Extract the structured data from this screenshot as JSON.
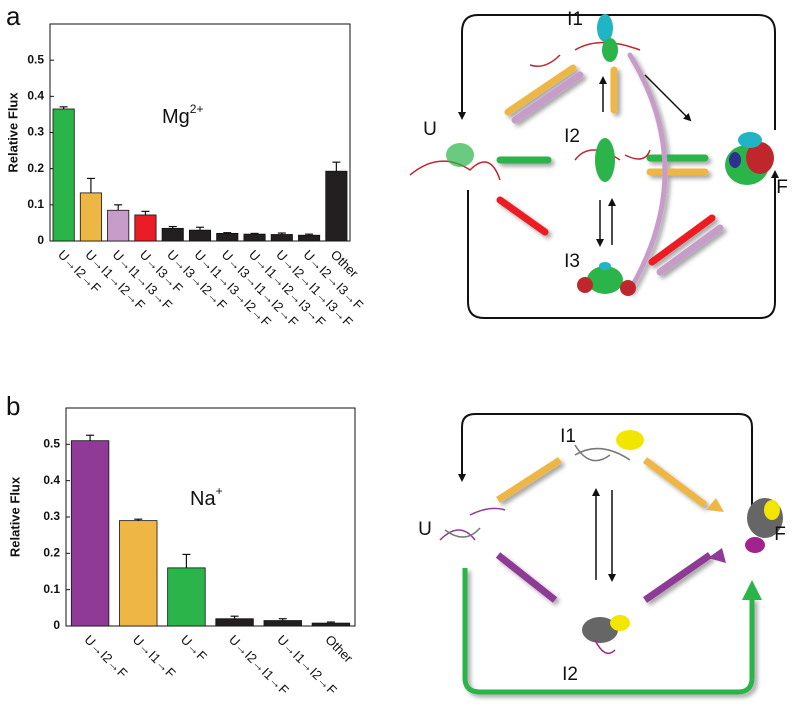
{
  "panels": [
    "a",
    "b"
  ],
  "chart_data": [
    {
      "type": "bar",
      "ylabel": "Relative Flux",
      "annotation": "Mg",
      "annotation_sup": "2+",
      "categories": [
        "U→I2→F",
        "U→I1→I2→F",
        "U→I1→I3→F",
        "U→I3→F",
        "U→I3→I2→F",
        "U→I1→I3→I2→F",
        "U→I3→I1→I2→F",
        "U→I1→I2→I3→F",
        "U→I2→I1→I3→F",
        "U→I2→I3→F",
        "Other"
      ],
      "values": [
        0.365,
        0.133,
        0.085,
        0.072,
        0.035,
        0.03,
        0.021,
        0.019,
        0.018,
        0.016,
        0.193
      ],
      "errors": [
        0.006,
        0.04,
        0.015,
        0.01,
        0.005,
        0.008,
        0.002,
        0.002,
        0.004,
        0.003,
        0.025
      ],
      "colors": [
        "#2bb44a",
        "#eeb745",
        "#c79cc8",
        "#ec1c24",
        "#231f20",
        "#231f20",
        "#231f20",
        "#231f20",
        "#231f20",
        "#231f20",
        "#231f20"
      ],
      "ylim": [
        0,
        0.6
      ],
      "yticks": [
        0,
        0.1,
        0.2,
        0.3,
        0.4,
        0.5
      ]
    },
    {
      "type": "bar",
      "ylabel": "Relative Flux",
      "annotation": "Na",
      "annotation_sup": "+",
      "categories": [
        "U→I2→F",
        "U→I1→F",
        "U→F",
        "U→I2→I1→F",
        "U→I1→I2→F",
        "Other"
      ],
      "values": [
        0.51,
        0.29,
        0.16,
        0.02,
        0.015,
        0.008
      ],
      "errors": [
        0.015,
        0.004,
        0.037,
        0.007,
        0.005,
        0.003
      ],
      "colors": [
        "#8e3a96",
        "#eeb745",
        "#2bb44a",
        "#231f20",
        "#231f20",
        "#231f20"
      ],
      "ylim": [
        0,
        0.6
      ],
      "yticks": [
        0,
        0.1,
        0.2,
        0.3,
        0.4,
        0.5
      ]
    }
  ],
  "diagrams": [
    {
      "nodes": [
        "U",
        "I1",
        "I2",
        "I3",
        "F"
      ]
    },
    {
      "nodes": [
        "U",
        "I1",
        "I2",
        "F"
      ]
    }
  ]
}
